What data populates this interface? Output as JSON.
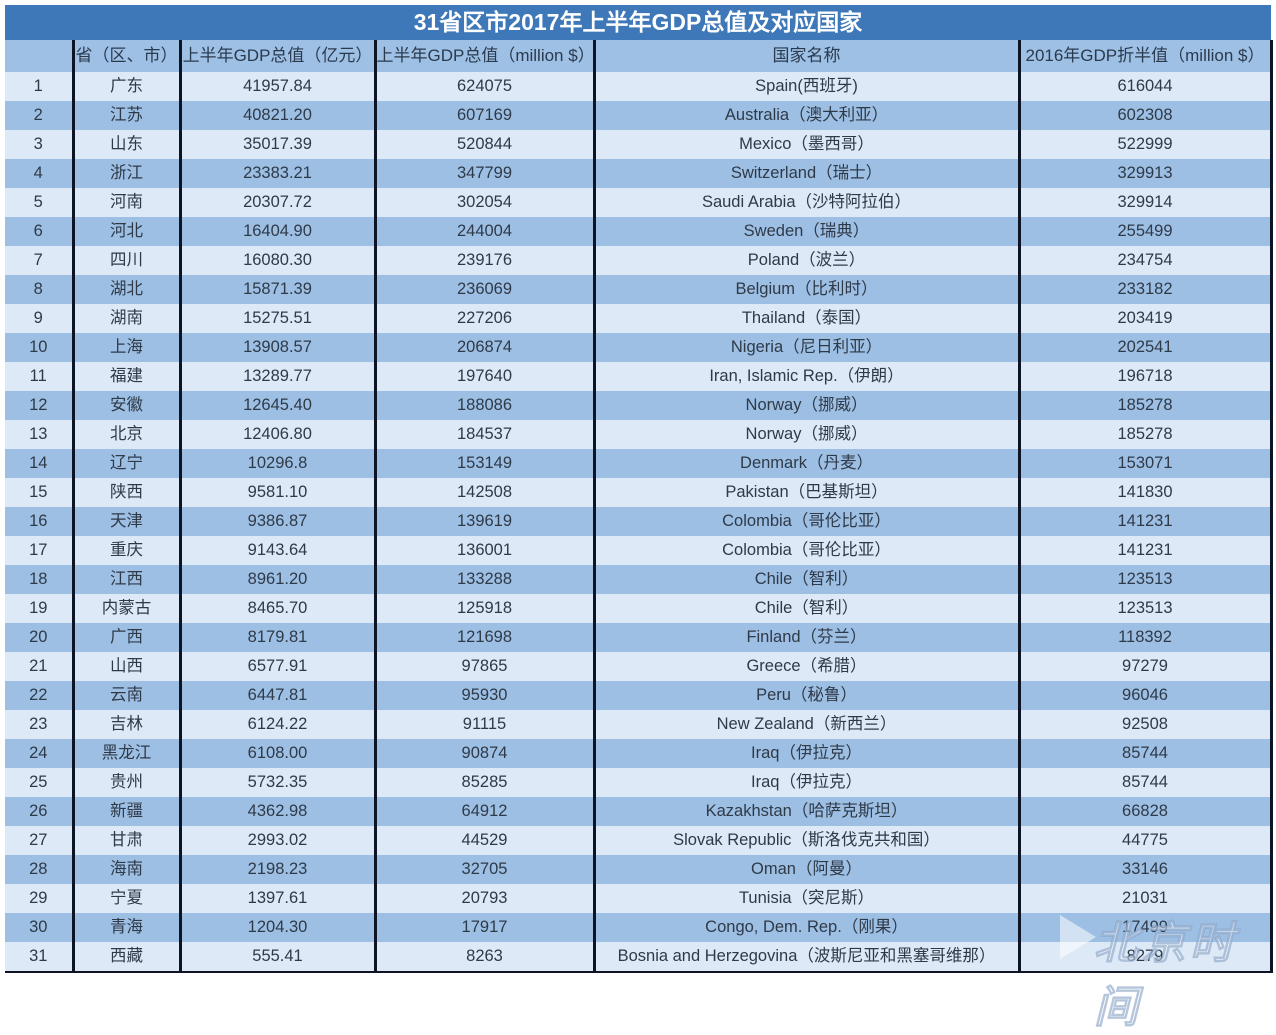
{
  "title": "31省区市2017年上半年GDP总值及对应国家",
  "headers": {
    "rank": "",
    "province": "省（区、市）",
    "gdp_cny": "上半年GDP总值（亿元）",
    "gdp_usd": "上半年GDP总值（million $）",
    "country": "国家名称",
    "gdp_2016_half": "2016年GDP折半值（million $）"
  },
  "rows": [
    {
      "rank": "1",
      "province": "广东",
      "gdp_cny": "41957.84",
      "gdp_usd": "624075",
      "country": "Spain(西班牙)",
      "gdp_2016_half": "616044"
    },
    {
      "rank": "2",
      "province": "江苏",
      "gdp_cny": "40821.20",
      "gdp_usd": "607169",
      "country": "Australia（澳大利亚）",
      "gdp_2016_half": "602308"
    },
    {
      "rank": "3",
      "province": "山东",
      "gdp_cny": "35017.39",
      "gdp_usd": "520844",
      "country": "Mexico（墨西哥）",
      "gdp_2016_half": "522999"
    },
    {
      "rank": "4",
      "province": "浙江",
      "gdp_cny": "23383.21",
      "gdp_usd": "347799",
      "country": "Switzerland（瑞士）",
      "gdp_2016_half": "329913"
    },
    {
      "rank": "5",
      "province": "河南",
      "gdp_cny": "20307.72",
      "gdp_usd": "302054",
      "country": "Saudi Arabia（沙特阿拉伯）",
      "gdp_2016_half": "329914"
    },
    {
      "rank": "6",
      "province": "河北",
      "gdp_cny": "16404.90",
      "gdp_usd": "244004",
      "country": "Sweden（瑞典）",
      "gdp_2016_half": "255499"
    },
    {
      "rank": "7",
      "province": "四川",
      "gdp_cny": "16080.30",
      "gdp_usd": "239176",
      "country": "Poland（波兰）",
      "gdp_2016_half": "234754"
    },
    {
      "rank": "8",
      "province": "湖北",
      "gdp_cny": "15871.39",
      "gdp_usd": "236069",
      "country": "Belgium（比利时）",
      "gdp_2016_half": "233182"
    },
    {
      "rank": "9",
      "province": "湖南",
      "gdp_cny": "15275.51",
      "gdp_usd": "227206",
      "country": "Thailand（泰国）",
      "gdp_2016_half": "203419"
    },
    {
      "rank": "10",
      "province": "上海",
      "gdp_cny": "13908.57",
      "gdp_usd": "206874",
      "country": "Nigeria（尼日利亚）",
      "gdp_2016_half": "202541"
    },
    {
      "rank": "11",
      "province": "福建",
      "gdp_cny": "13289.77",
      "gdp_usd": "197640",
      "country": "Iran, Islamic Rep.（伊朗）",
      "gdp_2016_half": "196718"
    },
    {
      "rank": "12",
      "province": "安徽",
      "gdp_cny": "12645.40",
      "gdp_usd": "188086",
      "country": "Norway（挪威）",
      "gdp_2016_half": "185278"
    },
    {
      "rank": "13",
      "province": "北京",
      "gdp_cny": "12406.80",
      "gdp_usd": "184537",
      "country": "Norway（挪威）",
      "gdp_2016_half": "185278"
    },
    {
      "rank": "14",
      "province": "辽宁",
      "gdp_cny": "10296.8",
      "gdp_usd": "153149",
      "country": "Denmark（丹麦）",
      "gdp_2016_half": "153071"
    },
    {
      "rank": "15",
      "province": "陕西",
      "gdp_cny": "9581.10",
      "gdp_usd": "142508",
      "country": "Pakistan（巴基斯坦）",
      "gdp_2016_half": "141830"
    },
    {
      "rank": "16",
      "province": "天津",
      "gdp_cny": "9386.87",
      "gdp_usd": "139619",
      "country": "Colombia（哥伦比亚）",
      "gdp_2016_half": "141231"
    },
    {
      "rank": "17",
      "province": "重庆",
      "gdp_cny": "9143.64",
      "gdp_usd": "136001",
      "country": "Colombia（哥伦比亚）",
      "gdp_2016_half": "141231"
    },
    {
      "rank": "18",
      "province": "江西",
      "gdp_cny": "8961.20",
      "gdp_usd": "133288",
      "country": "Chile（智利）",
      "gdp_2016_half": "123513"
    },
    {
      "rank": "19",
      "province": "内蒙古",
      "gdp_cny": "8465.70",
      "gdp_usd": "125918",
      "country": "Chile（智利）",
      "gdp_2016_half": "123513"
    },
    {
      "rank": "20",
      "province": "广西",
      "gdp_cny": "8179.81",
      "gdp_usd": "121698",
      "country": "Finland（芬兰）",
      "gdp_2016_half": "118392"
    },
    {
      "rank": "21",
      "province": "山西",
      "gdp_cny": "6577.91",
      "gdp_usd": "97865",
      "country": "Greece（希腊）",
      "gdp_2016_half": "97279"
    },
    {
      "rank": "22",
      "province": "云南",
      "gdp_cny": "6447.81",
      "gdp_usd": "95930",
      "country": "Peru（秘鲁）",
      "gdp_2016_half": "96046"
    },
    {
      "rank": "23",
      "province": "吉林",
      "gdp_cny": "6124.22",
      "gdp_usd": "91115",
      "country": "New Zealand（新西兰）",
      "gdp_2016_half": "92508"
    },
    {
      "rank": "24",
      "province": "黑龙江",
      "gdp_cny": "6108.00",
      "gdp_usd": "90874",
      "country": "Iraq（伊拉克）",
      "gdp_2016_half": "85744"
    },
    {
      "rank": "25",
      "province": "贵州",
      "gdp_cny": "5732.35",
      "gdp_usd": "85285",
      "country": "Iraq（伊拉克）",
      "gdp_2016_half": "85744"
    },
    {
      "rank": "26",
      "province": "新疆",
      "gdp_cny": "4362.98",
      "gdp_usd": "64912",
      "country": "Kazakhstan（哈萨克斯坦）",
      "gdp_2016_half": "66828"
    },
    {
      "rank": "27",
      "province": "甘肃",
      "gdp_cny": "2993.02",
      "gdp_usd": "44529",
      "country": "Slovak Republic（斯洛伐克共和国）",
      "gdp_2016_half": "44775"
    },
    {
      "rank": "28",
      "province": "海南",
      "gdp_cny": "2198.23",
      "gdp_usd": "32705",
      "country": "Oman（阿曼）",
      "gdp_2016_half": "33146"
    },
    {
      "rank": "29",
      "province": "宁夏",
      "gdp_cny": "1397.61",
      "gdp_usd": "20793",
      "country": "Tunisia（突尼斯）",
      "gdp_2016_half": "21031"
    },
    {
      "rank": "30",
      "province": "青海",
      "gdp_cny": "1204.30",
      "gdp_usd": "17917",
      "country": "Congo, Dem. Rep.（刚果）",
      "gdp_2016_half": "17499"
    },
    {
      "rank": "31",
      "province": "西藏",
      "gdp_cny": "555.41",
      "gdp_usd": "8263",
      "country": "Bosnia and Herzegovina（波斯尼亚和黑塞哥维那）",
      "gdp_2016_half": "8279"
    }
  ],
  "watermark": "北京时间",
  "colors": {
    "title_bg": "#3f78b8",
    "header_bg": "#9ec0e5",
    "row_light": "#dde9f6",
    "row_dark": "#9dbfe4",
    "border": "#0d1424"
  }
}
